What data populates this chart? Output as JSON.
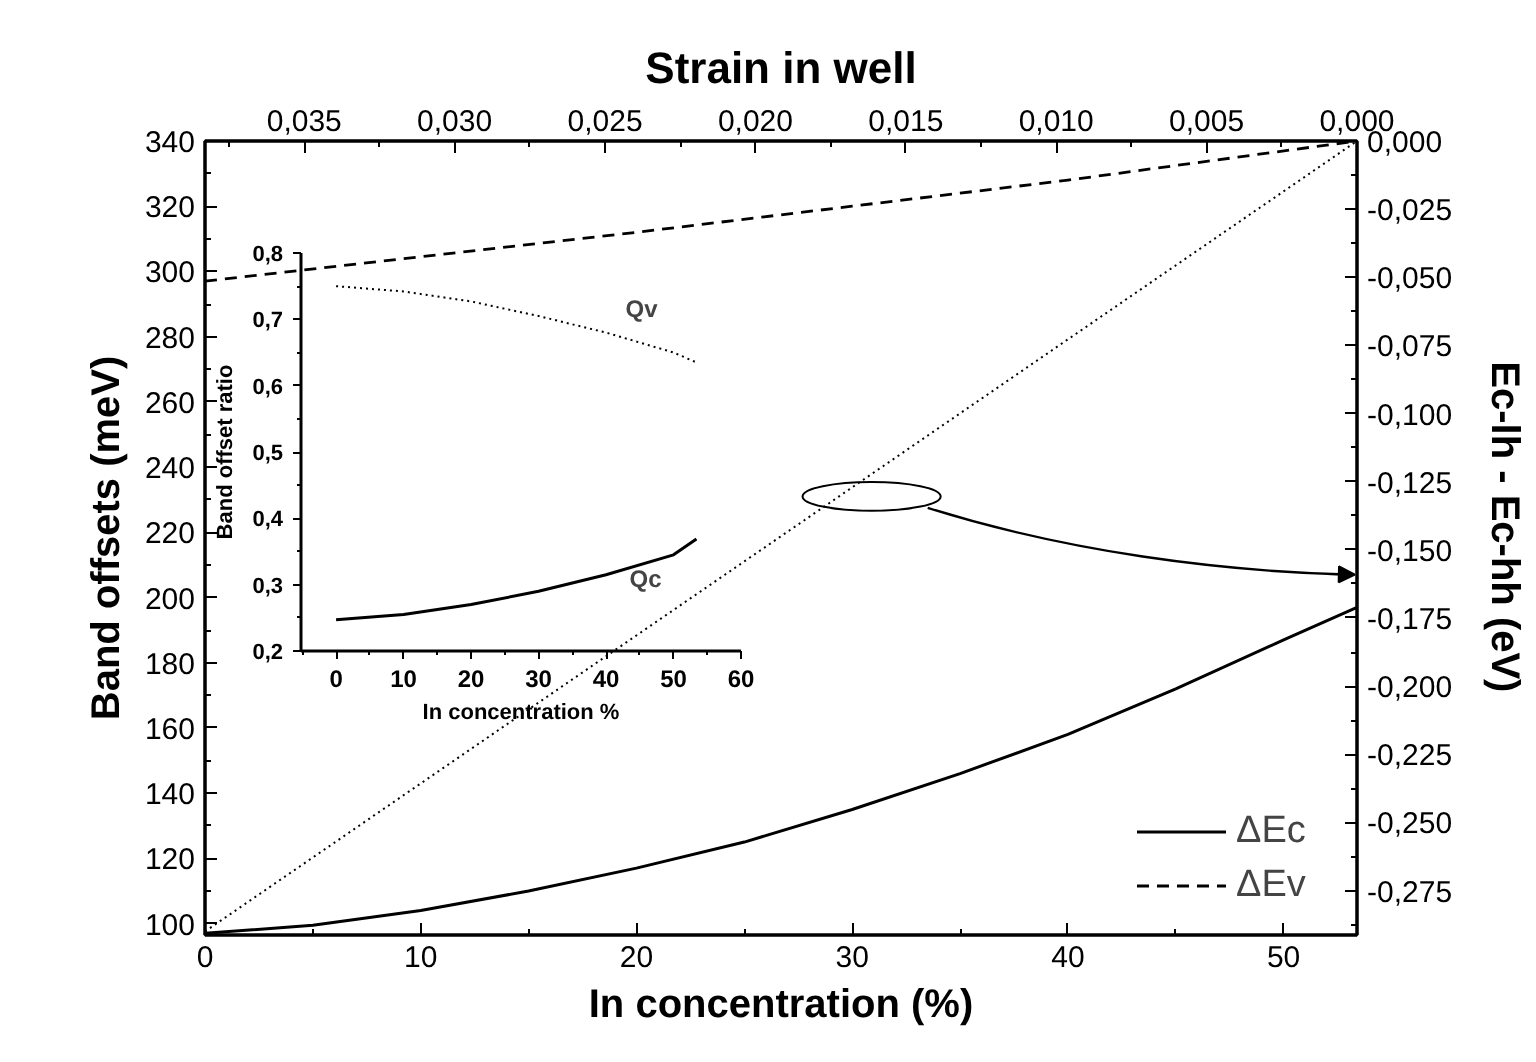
{
  "chart_data": [
    {
      "type": "line",
      "x2label": "Strain in well",
      "xlabel": "In concentration (%)",
      "ylabel": "Band offsets (meV)",
      "y2label": "Ec-lh - Ec-hh   (eV)",
      "xlim": [
        0,
        53.4
      ],
      "xticks": [
        0,
        10,
        20,
        30,
        40,
        50
      ],
      "ylim": [
        96.5,
        340
      ],
      "yticks": [
        100,
        120,
        140,
        160,
        180,
        200,
        220,
        240,
        260,
        280,
        300,
        320,
        340
      ],
      "x2lim": [
        0.0383,
        0
      ],
      "x2ticks": [
        {
          "value": 0.035,
          "label": "0,035"
        },
        {
          "value": 0.03,
          "label": "0,030"
        },
        {
          "value": 0.025,
          "label": "0,025"
        },
        {
          "value": 0.02,
          "label": "0,020"
        },
        {
          "value": 0.015,
          "label": "0,015"
        },
        {
          "value": 0.01,
          "label": "0,010"
        },
        {
          "value": 0.005,
          "label": "0,005"
        },
        {
          "value": 0,
          "label": "0,000"
        }
      ],
      "y2lim": [
        -0.2913,
        0
      ],
      "y2ticks": [
        {
          "value": 0,
          "label": "0,000"
        },
        {
          "value": -0.025,
          "label": "-0,025"
        },
        {
          "value": -0.05,
          "label": "-0,050"
        },
        {
          "value": -0.075,
          "label": "-0,075"
        },
        {
          "value": -0.1,
          "label": "-0,100"
        },
        {
          "value": -0.125,
          "label": "-0,125"
        },
        {
          "value": -0.15,
          "label": "-0,150"
        },
        {
          "value": -0.175,
          "label": "-0,175"
        },
        {
          "value": -0.2,
          "label": "-0,200"
        },
        {
          "value": -0.225,
          "label": "-0,225"
        },
        {
          "value": -0.25,
          "label": "-0,250"
        },
        {
          "value": -0.275,
          "label": "-0,275"
        }
      ],
      "grid": false,
      "legend": "bottom right",
      "series": [
        {
          "name": "ΔEc",
          "color": "#000000",
          "line_style": "solid",
          "x": [
            0,
            5,
            10,
            15,
            20,
            25,
            30,
            35,
            40,
            45,
            50,
            53.4
          ],
          "values": [
            97,
            99.5,
            104,
            110,
            117,
            125,
            135,
            146,
            158,
            172,
            187,
            197
          ]
        },
        {
          "name": "ΔEv",
          "color": "#000000",
          "line_style": "dashed",
          "x": [
            0,
            10,
            20,
            30,
            40,
            53.4
          ],
          "values": [
            297,
            304.5,
            312,
            320,
            328,
            340
          ]
        },
        {
          "color": "#000000",
          "line_style": "dotted",
          "axis": "y2",
          "x": [
            0,
            53.4
          ],
          "values": [
            -0.29,
            0
          ]
        }
      ]
    },
    {
      "type": "line",
      "xlabel": "In concentration %",
      "ylabel": "Band offset ratio",
      "xlim": [
        -5.2,
        60
      ],
      "xticks": [
        0,
        10,
        20,
        30,
        40,
        50,
        60
      ],
      "ylim": [
        0.2,
        0.8
      ],
      "yticks": [
        {
          "value": 0.2,
          "label": "0,2"
        },
        {
          "value": 0.3,
          "label": "0,3"
        },
        {
          "value": 0.4,
          "label": "0,4"
        },
        {
          "value": 0.5,
          "label": "0,5"
        },
        {
          "value": 0.6,
          "label": "0,6"
        },
        {
          "value": 0.7,
          "label": "0,7"
        },
        {
          "value": 0.8,
          "label": "0,8"
        }
      ],
      "grid": false,
      "annotations": [
        "Qv",
        "Qc"
      ],
      "series": [
        {
          "color": "#000000",
          "line_style": "dotted",
          "x": [
            0,
            10,
            20,
            30,
            40,
            50,
            53.4
          ],
          "values": [
            0.75,
            0.742,
            0.727,
            0.705,
            0.68,
            0.65,
            0.635
          ]
        },
        {
          "color": "#000000",
          "line_style": "solid",
          "x": [
            0,
            10,
            20,
            30,
            40,
            50,
            53.4
          ],
          "values": [
            0.247,
            0.255,
            0.27,
            0.29,
            0.315,
            0.345,
            0.369
          ]
        }
      ]
    }
  ]
}
